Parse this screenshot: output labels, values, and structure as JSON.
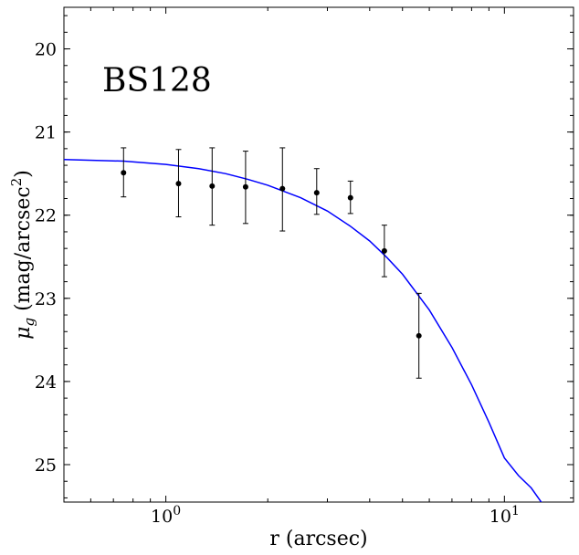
{
  "chart_data": {
    "type": "scatter",
    "annotation": "BS128",
    "xlabel": "r (arcsec)",
    "ylabel": "μ_g (mag/arcsec^2)",
    "xscale": "log",
    "xlim": [
      0.5,
      16
    ],
    "ylim": [
      25.45,
      19.5
    ],
    "y_inverted": true,
    "x_ticks": [
      {
        "value": 1,
        "label": "10^0"
      },
      {
        "value": 10,
        "label": "10^1"
      }
    ],
    "y_ticks": [
      20,
      21,
      22,
      23,
      24,
      25
    ],
    "grid": false,
    "points": [
      {
        "x": 0.75,
        "y": 21.49,
        "yerr_low": 21.19,
        "yerr_high": 21.78
      },
      {
        "x": 1.09,
        "y": 21.62,
        "yerr_low": 21.21,
        "yerr_high": 22.02
      },
      {
        "x": 1.37,
        "y": 21.65,
        "yerr_low": 21.19,
        "yerr_high": 22.12
      },
      {
        "x": 1.72,
        "y": 21.66,
        "yerr_low": 21.23,
        "yerr_high": 22.1
      },
      {
        "x": 2.21,
        "y": 21.68,
        "yerr_low": 21.19,
        "yerr_high": 22.19
      },
      {
        "x": 2.79,
        "y": 21.73,
        "yerr_low": 21.44,
        "yerr_high": 21.99
      },
      {
        "x": 3.51,
        "y": 21.79,
        "yerr_low": 21.59,
        "yerr_high": 21.98
      },
      {
        "x": 4.42,
        "y": 22.43,
        "yerr_low": 22.12,
        "yerr_high": 22.74
      },
      {
        "x": 5.59,
        "y": 23.45,
        "yerr_low": 22.94,
        "yerr_high": 23.96
      }
    ],
    "model_curve": {
      "color": "#0000ff",
      "x": [
        0.5,
        0.75,
        1.0,
        1.25,
        1.5,
        1.75,
        2.0,
        2.5,
        3.0,
        3.5,
        4.0,
        4.5,
        5.0,
        6.0,
        7.0,
        8.0,
        9.0,
        10.0,
        11.0,
        12.0,
        13.0
      ],
      "y": [
        21.33,
        21.35,
        21.39,
        21.44,
        21.5,
        21.57,
        21.64,
        21.79,
        21.95,
        22.13,
        22.31,
        22.51,
        22.71,
        23.14,
        23.59,
        24.04,
        24.49,
        24.92,
        25.13,
        25.28,
        25.48
      ]
    },
    "marker_color": "#000000"
  }
}
